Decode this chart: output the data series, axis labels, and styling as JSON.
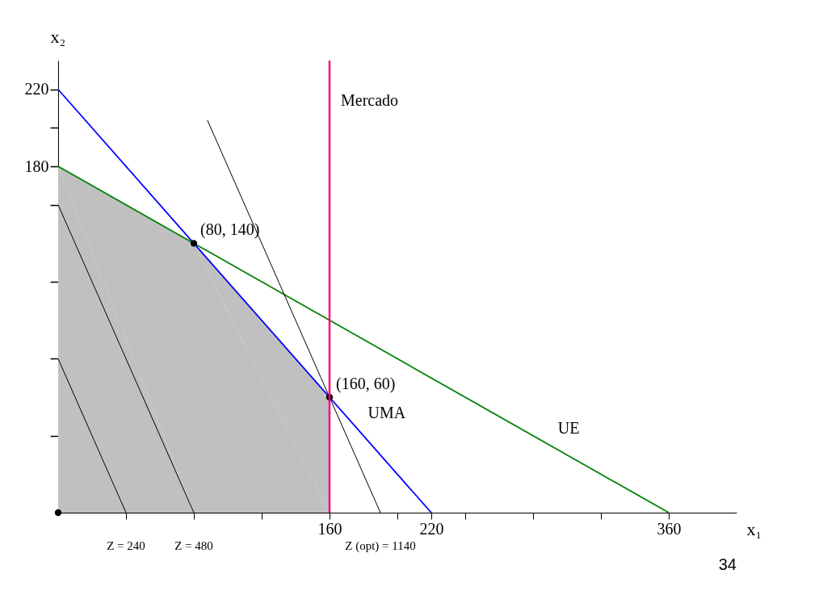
{
  "chart_data": {
    "type": "line",
    "xlabel": "x₁",
    "ylabel": "x₂",
    "xlim": [
      0,
      400
    ],
    "ylim": [
      0,
      235
    ],
    "xticks": [
      {
        "value": 40,
        "label": null
      },
      {
        "value": 80,
        "label": null
      },
      {
        "value": 120,
        "label": null
      },
      160,
      {
        "value": 200,
        "label": null
      },
      220,
      {
        "value": 240,
        "label": null
      },
      {
        "value": 280,
        "label": null
      },
      {
        "value": 320,
        "label": null
      },
      360
    ],
    "yticks": [
      {
        "value": 40,
        "label": null
      },
      {
        "value": 80,
        "label": null
      },
      {
        "value": 120,
        "label": null
      },
      {
        "value": 160,
        "label": null
      },
      180,
      {
        "value": 200,
        "label": null
      },
      220
    ],
    "grid": false,
    "series": [
      {
        "type": "area",
        "color": "#c0c0c0",
        "x": [
          0,
          0,
          80,
          160,
          160
        ],
        "values": [
          0,
          180,
          140,
          60,
          0
        ]
      },
      {
        "name": "UMA",
        "color": "#0000ff",
        "x": [
          0,
          220
        ],
        "values": [
          220,
          0
        ]
      },
      {
        "name": "UE",
        "color": "#008000",
        "x": [
          0,
          360
        ],
        "values": [
          180,
          0
        ]
      },
      {
        "color": "#000000",
        "x": [
          0,
          40
        ],
        "values": [
          80,
          0
        ]
      },
      {
        "color": "#000000",
        "x": [
          0,
          80
        ],
        "values": [
          160,
          0
        ]
      },
      {
        "color": "#000000",
        "x": [
          88,
          190
        ],
        "values": [
          204,
          0
        ]
      },
      {
        "type": "scatter",
        "color": "#000000",
        "x": [
          0,
          80,
          160
        ],
        "values": [
          0,
          140,
          60
        ]
      }
    ],
    "ref_lines": [
      {
        "axis": "x",
        "value": 160,
        "label": "Mercado",
        "color": "#ff0080"
      }
    ],
    "annotations": [
      {
        "text": "(80, 140)",
        "x": 80,
        "y": 140
      },
      {
        "text": "(160, 60)",
        "x": 160,
        "y": 60
      },
      {
        "text": "Z = 240",
        "x": 40,
        "y": 0
      },
      {
        "text": "Z = 480",
        "x": 80,
        "y": 0
      },
      {
        "text": "Z (opt) = 1140",
        "x": 190,
        "y": 0
      },
      "34"
    ]
  }
}
